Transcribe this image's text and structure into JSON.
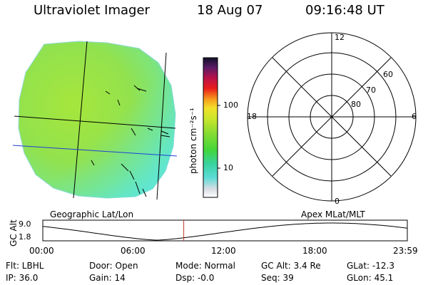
{
  "header": {
    "instrument": "Ultraviolet Imager",
    "date": "18 Aug 07",
    "time": "09:16:48 UT"
  },
  "colorbar": {
    "unit_label": "photon cm⁻²s⁻¹",
    "tick_100": "100",
    "tick_10": "10"
  },
  "polar": {
    "mlt_12": "12",
    "mlt_18": "18",
    "mlt_6": "6",
    "mlt_0": "0",
    "lat_60": "60",
    "lat_70": "70",
    "lat_80": "80"
  },
  "timeline": {
    "left_title": "Geographic Lat/Lon",
    "right_title": "Apex MLat/MLT",
    "axis_label": "GC Alt",
    "y_top": "9.0",
    "y_bottom": "1.8",
    "ticks": [
      "00:00",
      "06:00",
      "12:00",
      "18:00",
      "23:59"
    ],
    "marker_time_hours": 9.28
  },
  "status": {
    "flt": "Flt: LBHL",
    "ip": "IP: 36.0",
    "door": "Door: Open",
    "gain": "Gain: 14",
    "mode": "Mode: Normal",
    "dsp": "Dsp:   -0.0",
    "gcalt": "GC Alt: 3.4 Re",
    "seq": "Seq: 39",
    "glat": "GLat: -12.3",
    "glon": "GLon:  45.1"
  },
  "colors": {
    "earth_green": "#9be24a",
    "earth_cyan": "#5ee6d6",
    "marker_red": "#c0392b"
  }
}
